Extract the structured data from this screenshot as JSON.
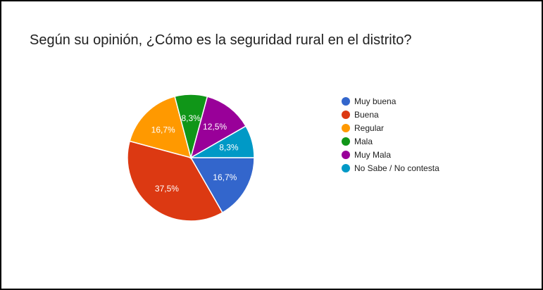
{
  "chart_data": {
    "type": "pie",
    "title": "Según su opinión, ¿Cómo es la seguridad rural en el distrito?",
    "legend_position": "right",
    "slices": [
      {
        "label": "Muy buena",
        "value": 16.7,
        "display": "16,7%",
        "color": "#3366cc"
      },
      {
        "label": "Buena",
        "value": 37.5,
        "display": "37,5%",
        "color": "#dc3912"
      },
      {
        "label": "Regular",
        "value": 16.7,
        "display": "16,7%",
        "color": "#ff9900"
      },
      {
        "label": "Mala",
        "value": 8.3,
        "display": "8,3%",
        "color": "#109618"
      },
      {
        "label": "Muy Mala",
        "value": 12.5,
        "display": "12,5%",
        "color": "#990099"
      },
      {
        "label": "No Sabe / No contesta",
        "value": 8.3,
        "display": "8,3%",
        "color": "#0099c6"
      }
    ]
  }
}
